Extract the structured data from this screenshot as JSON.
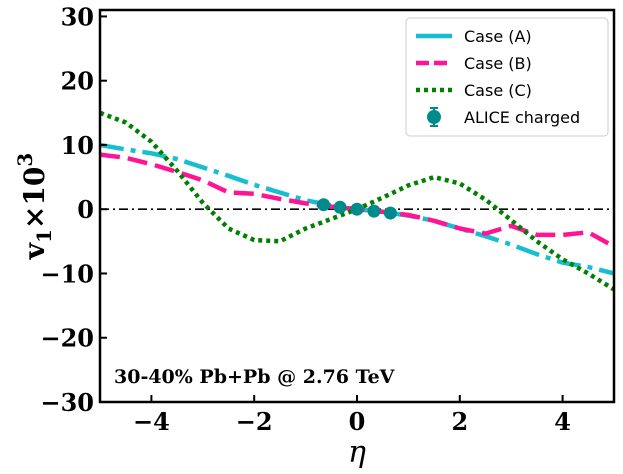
{
  "chart_data": {
    "type": "line",
    "title": "",
    "xlabel": "η",
    "ylabel_main": "v",
    "ylabel_sub": "1",
    "ylabel_times": "×10",
    "ylabel_exp": "3",
    "xlim": [
      -5,
      5
    ],
    "ylim": [
      -30,
      31
    ],
    "xticks": [
      -4,
      -2,
      0,
      2,
      4
    ],
    "xtick_labels": [
      "−4",
      "−2",
      "0",
      "2",
      "4"
    ],
    "yticks": [
      30,
      20,
      10,
      0,
      -10,
      -20,
      -30
    ],
    "ytick_labels": [
      "30",
      "20",
      "10",
      "0",
      "−10",
      "−20",
      "−30"
    ],
    "annotation": "30-40% Pb+Pb @ 2.76 TeV",
    "reference_line_y": 0,
    "series": [
      {
        "name": "Case (A)",
        "color": "#17becf",
        "dash": "dashdot",
        "x": [
          -5,
          -4.5,
          -4,
          -3.5,
          -3,
          -2.5,
          -2,
          -1.5,
          -1,
          -0.5,
          0,
          0.5,
          1,
          1.5,
          2,
          2.5,
          3,
          3.5,
          4,
          4.5,
          5
        ],
        "y": [
          10,
          9.3,
          8.7,
          7.8,
          6.5,
          5.2,
          3.8,
          2.6,
          1.4,
          0.6,
          0,
          -0.4,
          -1.0,
          -1.8,
          -3.0,
          -4.2,
          -5.5,
          -7.0,
          -8.3,
          -9.0,
          -10
        ]
      },
      {
        "name": "Case (B)",
        "color": "#ff1493",
        "dash": "dashed",
        "x": [
          -5,
          -4.5,
          -4,
          -3.5,
          -3,
          -2.5,
          -2,
          -1.5,
          -1,
          -0.5,
          0,
          0.5,
          1,
          1.5,
          2,
          2.5,
          3,
          3.5,
          4,
          4.5,
          5
        ],
        "y": [
          8.5,
          8.0,
          7.0,
          5.8,
          4.5,
          2.6,
          2.4,
          1.6,
          0.9,
          0.4,
          0,
          -0.4,
          -0.9,
          -1.8,
          -3.0,
          -3.8,
          -2.6,
          -4.0,
          -4.0,
          -3.6,
          -5.8
        ]
      },
      {
        "name": "Case (C)",
        "color": "#008000",
        "dash": "dotted",
        "x": [
          -5,
          -4.5,
          -4,
          -3.5,
          -3,
          -2.5,
          -2,
          -1.5,
          -1,
          -0.5,
          0,
          0.5,
          1,
          1.5,
          2,
          2.5,
          3,
          3.5,
          4,
          4.5,
          5
        ],
        "y": [
          15,
          13.5,
          10.5,
          6.0,
          1.0,
          -3.0,
          -4.8,
          -5.0,
          -3.0,
          -1.5,
          0,
          1.8,
          3.7,
          5.0,
          4.0,
          1.5,
          -1.7,
          -5.0,
          -7.8,
          -10.0,
          -12.5
        ]
      }
    ],
    "markers_series": {
      "name": "ALICE charged",
      "color": "#008b8b",
      "x": [
        -0.65,
        -0.33,
        0,
        0.33,
        0.65
      ],
      "y": [
        0.7,
        0.3,
        0,
        -0.3,
        -0.6
      ]
    }
  }
}
